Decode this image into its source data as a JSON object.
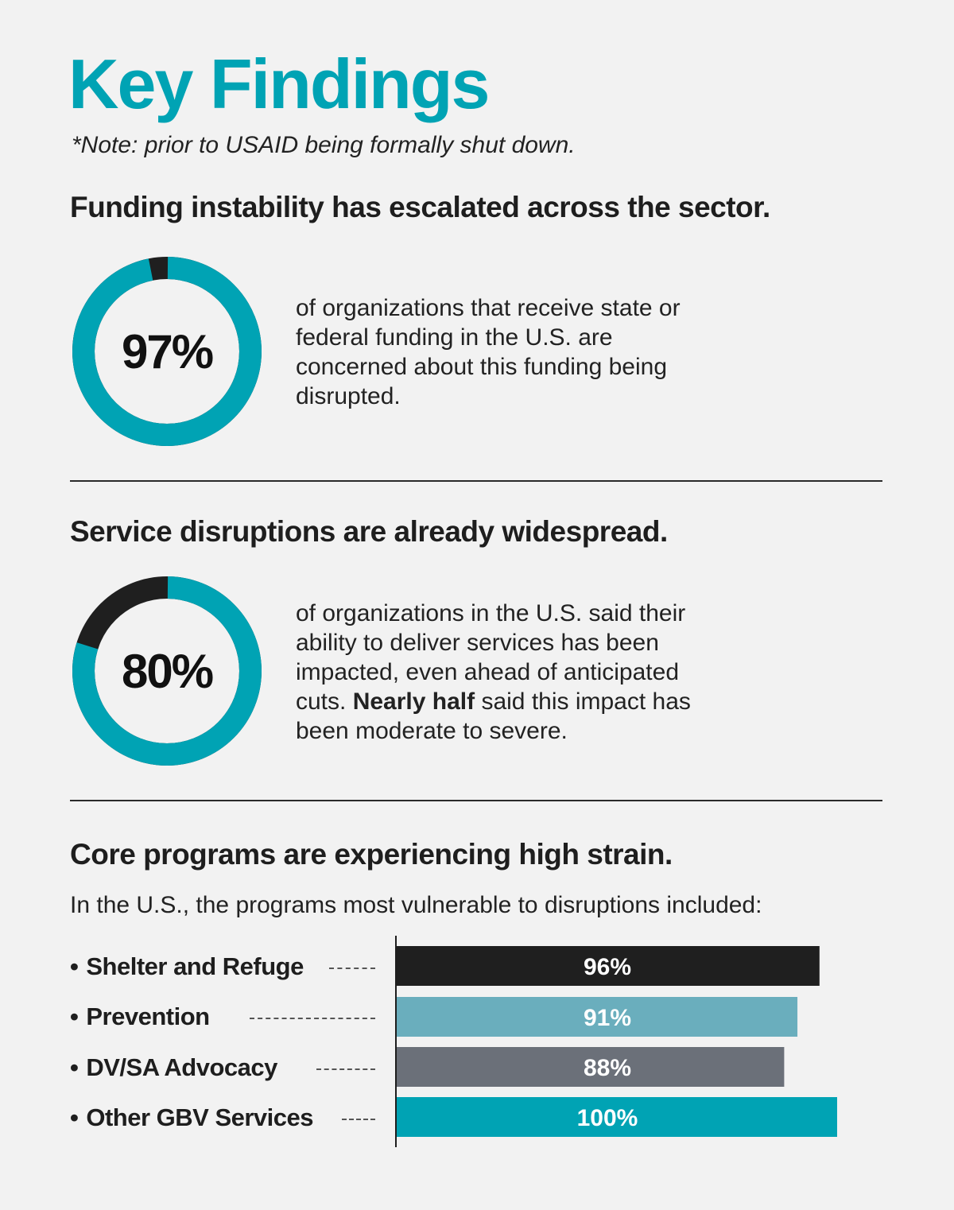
{
  "title": "Key Findings",
  "note": "*Note: prior to USAID being formally shut down.",
  "colors": {
    "accent": "#00a3b4",
    "dark": "#1f1f1f",
    "prevention": "#6aaebd",
    "advocacy": "#6b7079",
    "other": "#00a3b4"
  },
  "sections": [
    {
      "heading": "Funding instability has escalated across the sector.",
      "stat": "97%",
      "stat_value": 97,
      "description": "of organizations that receive state or federal funding in the U.S. are concerned about this funding being disrupted."
    },
    {
      "heading": "Service disruptions are already widespread.",
      "stat": "80%",
      "stat_value": 80,
      "description_part1": "of organizations in the U.S. said their ability to deliver services has been impacted, even ahead of anticipated cuts. ",
      "description_bold": "Nearly half",
      "description_part2": " said this impact has been moderate to severe."
    },
    {
      "heading": "Core programs are experiencing high strain.",
      "intro": "In the U.S., the programs most vulnerable to disruptions included:"
    }
  ],
  "chart_data": {
    "type": "bar",
    "orientation": "horizontal",
    "categories": [
      "Shelter and Refuge",
      "Prevention",
      "DV/SA Advocacy",
      "Other GBV Services"
    ],
    "values": [
      96,
      91,
      88,
      100
    ],
    "value_labels": [
      "96%",
      "91%",
      "88%",
      "100%"
    ],
    "bar_colors": [
      "#1f1f1f",
      "#6aaebd",
      "#6b7079",
      "#00a3b4"
    ],
    "xlim": [
      0,
      100
    ]
  }
}
